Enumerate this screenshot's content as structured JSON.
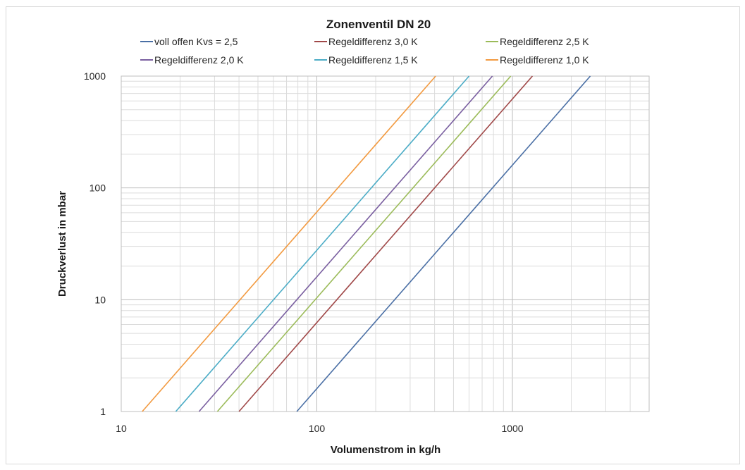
{
  "chart_data": {
    "type": "line",
    "title": "Zonenventil DN 20",
    "xlabel": "Volumenstrom in kg/h",
    "ylabel": "Druckverlust in mbar",
    "x_scale": "log",
    "y_scale": "log",
    "xlim": [
      10,
      5000
    ],
    "ylim": [
      1,
      1000
    ],
    "x_ticks": [
      "10",
      "100",
      "1000"
    ],
    "y_ticks": [
      "1",
      "10",
      "100",
      "1000"
    ],
    "grid": true,
    "legend_position": "top",
    "series": [
      {
        "name": "voll offen Kvs = 2,5",
        "color": "#4a6fa5",
        "x": [
          79,
          2500
        ],
        "y": [
          1,
          1000
        ]
      },
      {
        "name": "Regeldifferenz 3,0 K",
        "color": "#a04848",
        "x": [
          40,
          1265
        ],
        "y": [
          1,
          1000
        ]
      },
      {
        "name": "Regeldifferenz 2,5 K",
        "color": "#9bbb59",
        "x": [
          31,
          980
        ],
        "y": [
          1,
          1000
        ]
      },
      {
        "name": "Regeldifferenz 2,0 K",
        "color": "#7a5fa0",
        "x": [
          25,
          790
        ],
        "y": [
          1,
          1000
        ]
      },
      {
        "name": "Regeldifferenz 1,5 K",
        "color": "#4bacc6",
        "x": [
          19,
          600
        ],
        "y": [
          1,
          1000
        ]
      },
      {
        "name": "Regeldifferenz 1,0 K",
        "color": "#f29a40",
        "x": [
          12.8,
          405
        ],
        "y": [
          1,
          1000
        ]
      }
    ]
  }
}
